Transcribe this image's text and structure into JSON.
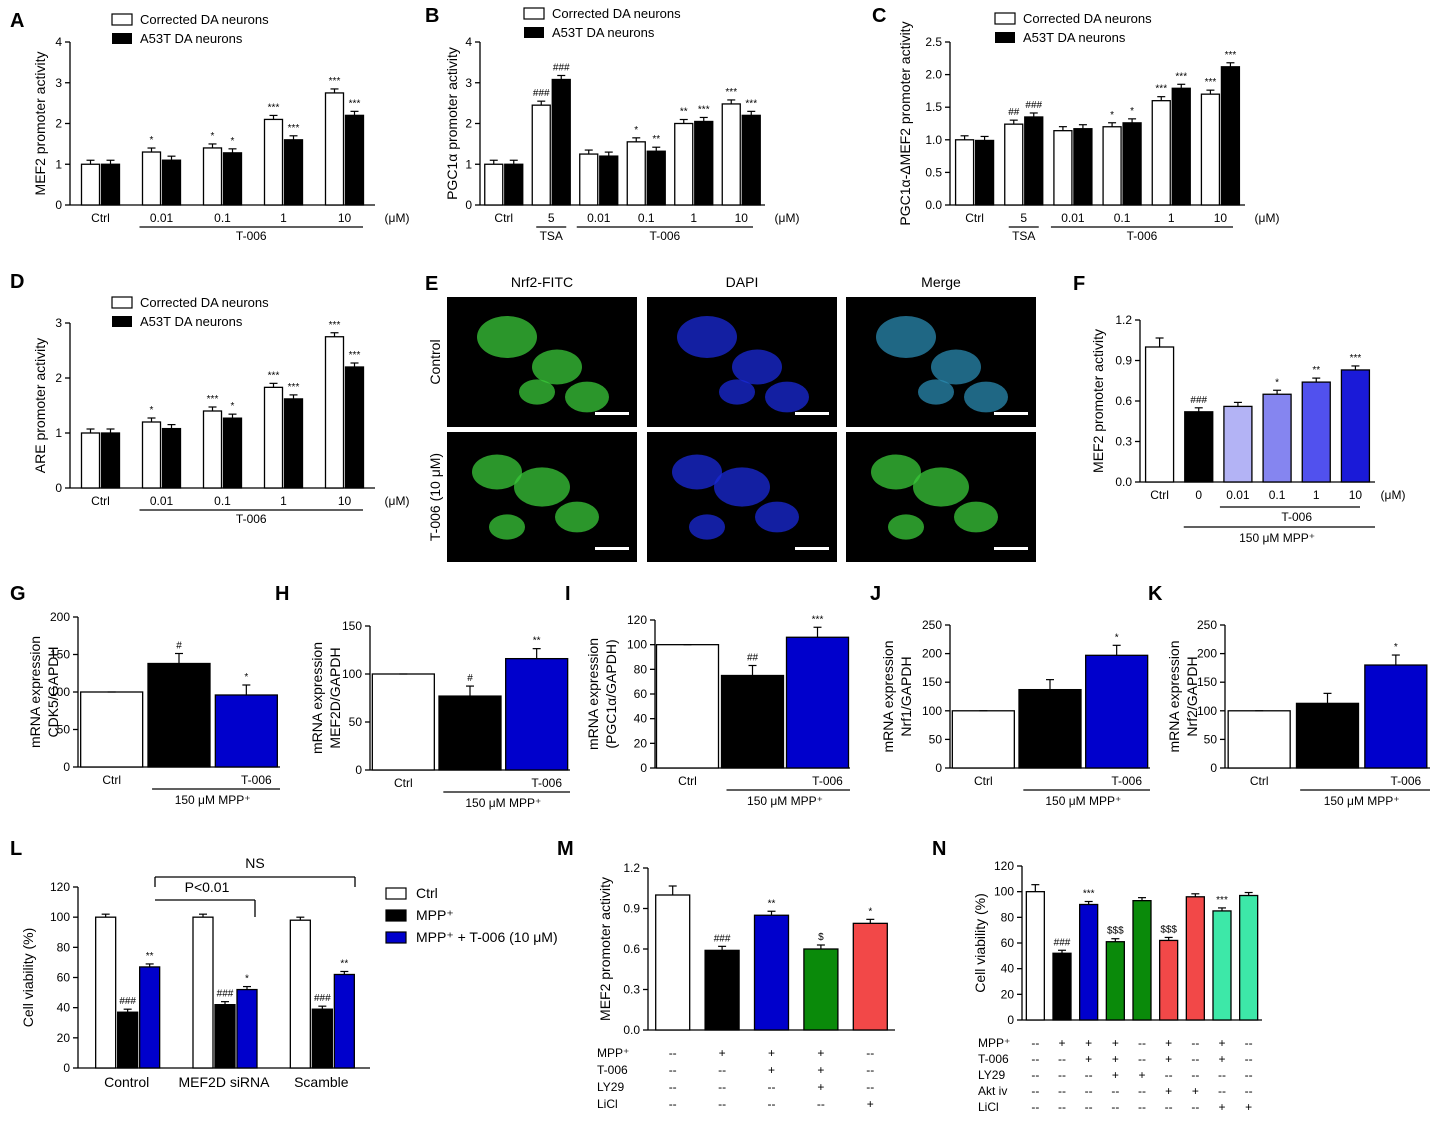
{
  "colors": {
    "white": "#ffffff",
    "black": "#000000",
    "blue": "#0000cc",
    "green": "#0a8a0a",
    "red": "#f24848",
    "teal": "#3de8a8",
    "lav1": "#b3b3f5",
    "lav2": "#8585f0",
    "lav3": "#5151ee",
    "lav4": "#1a1ad8"
  },
  "legend": {
    "corrected": "Corrected DA neurons",
    "a53t": "A53T DA neurons"
  },
  "micro": {
    "panel": "E",
    "cols": [
      "Nrf2-FITC",
      "DAPI",
      "Merge"
    ],
    "rows": [
      "Control",
      "T-006 (10 μM)"
    ]
  },
  "chart_data": [
    {
      "panel": "A",
      "type": "bar",
      "ylabel": "MEF2 promoter activity",
      "ylim": [
        0,
        4
      ],
      "yticks": [
        "0",
        "1",
        "2",
        "3",
        "4"
      ],
      "categories": [
        "Ctrl",
        "0.01",
        "0.1",
        "1",
        "10"
      ],
      "unit": "(μM)",
      "group_label": "T-006",
      "series": [
        {
          "name": "Corrected DA neurons",
          "values": [
            1.0,
            1.3,
            1.4,
            2.1,
            2.75
          ],
          "sig": [
            "",
            "*",
            "*",
            "***",
            "***"
          ]
        },
        {
          "name": "A53T DA neurons",
          "values": [
            1.0,
            1.1,
            1.28,
            1.6,
            2.2
          ],
          "sig": [
            "",
            "",
            "*",
            "***",
            "***"
          ]
        }
      ]
    },
    {
      "panel": "B",
      "type": "bar",
      "ylabel": "PGC1α promoter activity",
      "ylim": [
        0,
        4
      ],
      "yticks": [
        "0",
        "1",
        "2",
        "3",
        "4"
      ],
      "categories": [
        "Ctrl",
        "5",
        "0.01",
        "0.1",
        "1",
        "10"
      ],
      "sublabels": [
        "",
        "TSA",
        "",
        "",
        "",
        ""
      ],
      "unit": "(μM)",
      "group_label": "T-006",
      "series": [
        {
          "name": "Corrected DA neurons",
          "values": [
            1.0,
            2.45,
            1.25,
            1.55,
            2.0,
            2.48
          ],
          "sig": [
            "",
            "###",
            "",
            "*",
            "**",
            "***"
          ]
        },
        {
          "name": "A53T DA neurons",
          "values": [
            1.0,
            3.08,
            1.2,
            1.32,
            2.05,
            2.2
          ],
          "sig": [
            "",
            "###",
            "",
            "**",
            "***",
            "***"
          ]
        }
      ]
    },
    {
      "panel": "C",
      "type": "bar",
      "ylabel": "PGC1α-ΔMEF2 promoter activity",
      "ylim": [
        0,
        2.5
      ],
      "yticks": [
        "0.0",
        "0.5",
        "1.0",
        "1.5",
        "2.0",
        "2.5"
      ],
      "categories": [
        "Ctrl",
        "5",
        "0.01",
        "0.1",
        "1",
        "10"
      ],
      "sublabels": [
        "",
        "TSA",
        "",
        "",
        "",
        ""
      ],
      "unit": "(μM)",
      "group_label": "T-006",
      "series": [
        {
          "name": "Corrected DA neurons",
          "values": [
            1.0,
            1.24,
            1.14,
            1.2,
            1.6,
            1.7
          ],
          "sig": [
            "",
            "##",
            "",
            "*",
            "***",
            "***"
          ]
        },
        {
          "name": "A53T DA neurons",
          "values": [
            0.99,
            1.35,
            1.17,
            1.26,
            1.79,
            2.12
          ],
          "sig": [
            "",
            "###",
            "",
            "*",
            "***",
            "***"
          ]
        }
      ]
    },
    {
      "panel": "D",
      "type": "bar",
      "ylabel": "ARE promoter activity",
      "ylim": [
        0,
        3
      ],
      "yticks": [
        "0",
        "1",
        "2",
        "3"
      ],
      "categories": [
        "Ctrl",
        "0.01",
        "0.1",
        "1",
        "10"
      ],
      "unit": "(μM)",
      "group_label": "T-006",
      "series": [
        {
          "name": "Corrected DA neurons",
          "values": [
            1.0,
            1.2,
            1.4,
            1.83,
            2.75
          ],
          "sig": [
            "",
            "*",
            "***",
            "***",
            "***"
          ]
        },
        {
          "name": "A53T DA neurons",
          "values": [
            1.0,
            1.08,
            1.27,
            1.62,
            2.2
          ],
          "sig": [
            "",
            "",
            "*",
            "***",
            "***"
          ]
        }
      ]
    },
    {
      "panel": "F",
      "type": "bar",
      "ylabel": "MEF2 promoter activity",
      "ylim": [
        0,
        1.2
      ],
      "yticks": [
        "0.0",
        "0.3",
        "0.6",
        "0.9",
        "1.2"
      ],
      "categories": [
        "Ctrl",
        "0",
        "0.01",
        "0.1",
        "1",
        "10"
      ],
      "unit": "(μM)",
      "group_label": "T-006",
      "group_label2": "150 μM MPP⁺",
      "values": [
        1.0,
        0.52,
        0.56,
        0.65,
        0.74,
        0.83
      ],
      "sig": [
        "",
        "###",
        "",
        "*",
        "**",
        "***"
      ]
    },
    {
      "panel": "G",
      "type": "bar",
      "ylabel": "mRNA expression CDK5/GAPDH",
      "ylim": [
        0,
        200
      ],
      "yticks": [
        "0",
        "50",
        "100",
        "150",
        "200"
      ],
      "categories": [
        "Ctrl",
        "",
        "T-006"
      ],
      "group_label": "150 μM MPP⁺",
      "values": [
        100,
        138,
        96
      ],
      "sig": [
        "",
        "#",
        "*"
      ]
    },
    {
      "panel": "H",
      "type": "bar",
      "ylabel": "mRNA expression MEF2D/GAPDH",
      "ylim": [
        0,
        150
      ],
      "yticks": [
        "0",
        "50",
        "100",
        "150"
      ],
      "categories": [
        "Ctrl",
        "",
        "T-006"
      ],
      "group_label": "150 μM MPP⁺",
      "values": [
        100,
        77,
        116
      ],
      "sig": [
        "",
        "#",
        "**"
      ]
    },
    {
      "panel": "I",
      "type": "bar",
      "ylabel": "mRNA expression (PGC1α/GAPDH)",
      "ylim": [
        0,
        120
      ],
      "yticks": [
        "0",
        "20",
        "40",
        "60",
        "80",
        "100",
        "120"
      ],
      "categories": [
        "Ctrl",
        "",
        "T-006"
      ],
      "group_label": "150 μM MPP⁺",
      "values": [
        100,
        75,
        106
      ],
      "sig": [
        "",
        "##",
        "***"
      ]
    },
    {
      "panel": "J",
      "type": "bar",
      "ylabel": "mRNA expression Nrf1/GAPDH",
      "ylim": [
        0,
        250
      ],
      "yticks": [
        "0",
        "50",
        "100",
        "150",
        "200",
        "250"
      ],
      "categories": [
        "Ctrl",
        "",
        "T-006"
      ],
      "group_label": "150 μM MPP⁺",
      "values": [
        100,
        137,
        197
      ],
      "sig": [
        "",
        "",
        "*"
      ]
    },
    {
      "panel": "K",
      "type": "bar",
      "ylabel": "mRNA expression Nrf2/GAPDH",
      "ylim": [
        0,
        250
      ],
      "yticks": [
        "0",
        "50",
        "100",
        "150",
        "200",
        "250"
      ],
      "categories": [
        "Ctrl",
        "",
        "T-006"
      ],
      "group_label": "150 μM MPP⁺",
      "values": [
        100,
        113,
        180
      ],
      "sig": [
        "",
        "",
        "*"
      ]
    },
    {
      "panel": "L",
      "type": "bar",
      "ylabel": "Cell viability (%)",
      "ylim": [
        0,
        120
      ],
      "yticks": [
        "0",
        "20",
        "40",
        "60",
        "80",
        "100",
        "120"
      ],
      "categories": [
        "Control",
        "MEF2D siRNA",
        "Scamble"
      ],
      "series": [
        {
          "name": "Ctrl",
          "values": [
            100,
            100,
            98
          ],
          "sig": [
            "",
            "",
            ""
          ]
        },
        {
          "name": "MPP⁺",
          "values": [
            37,
            42,
            39
          ],
          "sig": [
            "###",
            "###",
            "###"
          ]
        },
        {
          "name": "MPP⁺ + T-006 (10 μM)",
          "values": [
            67,
            52,
            62
          ],
          "sig": [
            "**",
            "*",
            "**"
          ]
        }
      ],
      "annotations": [
        "P<0.01",
        "NS"
      ]
    },
    {
      "panel": "M",
      "type": "bar",
      "ylabel": "MEF2 promoter activity",
      "ylim": [
        0,
        1.2
      ],
      "yticks": [
        "0.0",
        "0.3",
        "0.6",
        "0.9",
        "1.2"
      ],
      "values": [
        1.0,
        0.59,
        0.85,
        0.6,
        0.79
      ],
      "sig": [
        "",
        "###",
        "**",
        "$",
        "*"
      ],
      "treatments": [
        {
          "name": "MPP⁺",
          "marks": [
            "--",
            "+",
            "+",
            "+",
            "--"
          ]
        },
        {
          "name": "T-006",
          "marks": [
            "--",
            "--",
            "+",
            "+",
            "--"
          ]
        },
        {
          "name": "LY29",
          "marks": [
            "--",
            "--",
            "--",
            "+",
            "--"
          ]
        },
        {
          "name": "LiCl",
          "marks": [
            "--",
            "--",
            "--",
            "--",
            "+"
          ]
        }
      ]
    },
    {
      "panel": "N",
      "type": "bar",
      "ylabel": "Cell viability (%)",
      "ylim": [
        0,
        120
      ],
      "yticks": [
        "0",
        "20",
        "40",
        "60",
        "80",
        "100",
        "120"
      ],
      "values": [
        100,
        52,
        90,
        61,
        93,
        62,
        96,
        85,
        97
      ],
      "sig": [
        "",
        "###",
        "***",
        "$$$",
        "",
        "$$$",
        "",
        "***",
        ""
      ],
      "treatments": [
        {
          "name": "MPP⁺",
          "marks": [
            "--",
            "+",
            "+",
            "+",
            "--",
            "+",
            "--",
            "+",
            "--"
          ]
        },
        {
          "name": "T-006",
          "marks": [
            "--",
            "--",
            "+",
            "+",
            "--",
            "+",
            "--",
            "+",
            "--"
          ]
        },
        {
          "name": "LY29",
          "marks": [
            "--",
            "--",
            "--",
            "+",
            "+",
            "--",
            "--",
            "--",
            "--"
          ]
        },
        {
          "name": "Akt iv",
          "marks": [
            "--",
            "--",
            "--",
            "--",
            "--",
            "+",
            "+",
            "--",
            "--"
          ]
        },
        {
          "name": "LiCl",
          "marks": [
            "--",
            "--",
            "--",
            "--",
            "--",
            "--",
            "--",
            "+",
            "+"
          ]
        }
      ]
    }
  ]
}
